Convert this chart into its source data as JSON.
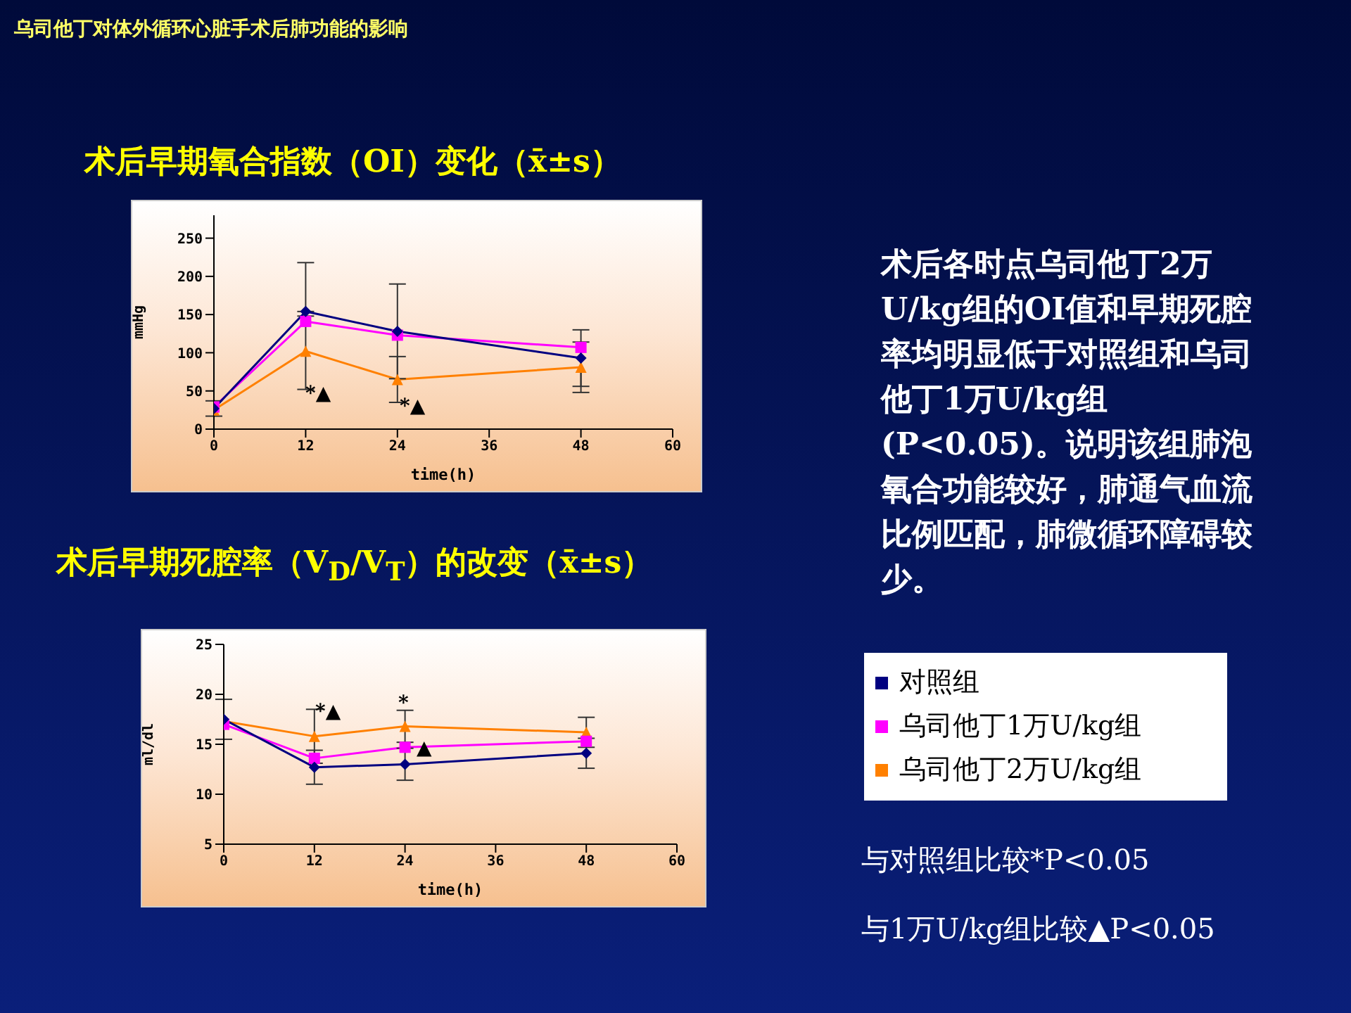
{
  "chart_data": [
    {
      "type": "line",
      "title": "术后早期氧合指数（OI）变化（x̄±s）",
      "xlabel": "time(h)",
      "ylabel": "mmHg",
      "x": [
        0,
        12,
        24,
        48
      ],
      "xlim": [
        0,
        60
      ],
      "xticks": [
        0,
        12,
        24,
        36,
        48,
        60
      ],
      "ylim": [
        0,
        280
      ],
      "yticks": [
        0,
        50,
        100,
        150,
        200,
        250
      ],
      "legend": "right",
      "series": [
        {
          "name": "对照组",
          "color": "#000080",
          "marker": "diamond",
          "values": [
            27,
            154,
            128,
            93
          ],
          "errors": [
            10,
            [
              154,
              218
            ],
            62,
            37
          ]
        },
        {
          "name": "乌司他丁1万U/kg组",
          "color": "#ff00ff",
          "marker": "square",
          "values": [
            29,
            141,
            123,
            107
          ]
        },
        {
          "name": "乌司他丁2万U/kg组",
          "color": "#ff8000",
          "marker": "triangle",
          "values": [
            25,
            102,
            65,
            81
          ],
          "errors": [
            null,
            [
              52,
              148
            ],
            30,
            33
          ]
        }
      ],
      "annotations": [
        "乌司他丁对体外循环心脏手术后肺功能的影响",
        "术后各时点乌司他丁2万U/kg组的OI值和早期死腔率均明显低于对照组和乌司他丁1万U/kg组(P<0.05)。说明该组肺泡氧合功能较好，肺通气血流比例匹配，肺微循环障碍较少。",
        "与对照组比较*P<0.05",
        "与1万U/kg组比较▲P<0.05",
        "*▲",
        "*▲"
      ]
    },
    {
      "type": "line",
      "title": "术后早期死腔率（V$_{D}$/V$_{T}$）的改变（x̄±s）",
      "xlabel": "time(h)",
      "ylabel": "ml/dl",
      "x": [
        0,
        12,
        24,
        48
      ],
      "xlim": [
        0,
        60
      ],
      "xticks": [
        0,
        12,
        24,
        36,
        48,
        60
      ],
      "ylim": [
        5,
        25
      ],
      "yticks": [
        5,
        10,
        15,
        20,
        25
      ],
      "series": [
        {
          "color": "#000080",
          "marker": "diamond",
          "values": [
            17.5,
            12.7,
            13.0,
            14.1
          ],
          "errors": [
            2.0,
            1.7,
            1.6,
            1.5
          ]
        },
        {
          "color": "#ff00ff",
          "marker": "square",
          "values": [
            17.0,
            13.6,
            14.7,
            15.3
          ]
        },
        {
          "color": "#ff8000",
          "marker": "triangle",
          "values": [
            17.3,
            15.8,
            16.8,
            16.2
          ],
          "errors": [
            null,
            2.7,
            1.6,
            1.5
          ]
        }
      ],
      "annotations": [
        "*▲",
        "*",
        "▲"
      ]
    }
  ]
}
